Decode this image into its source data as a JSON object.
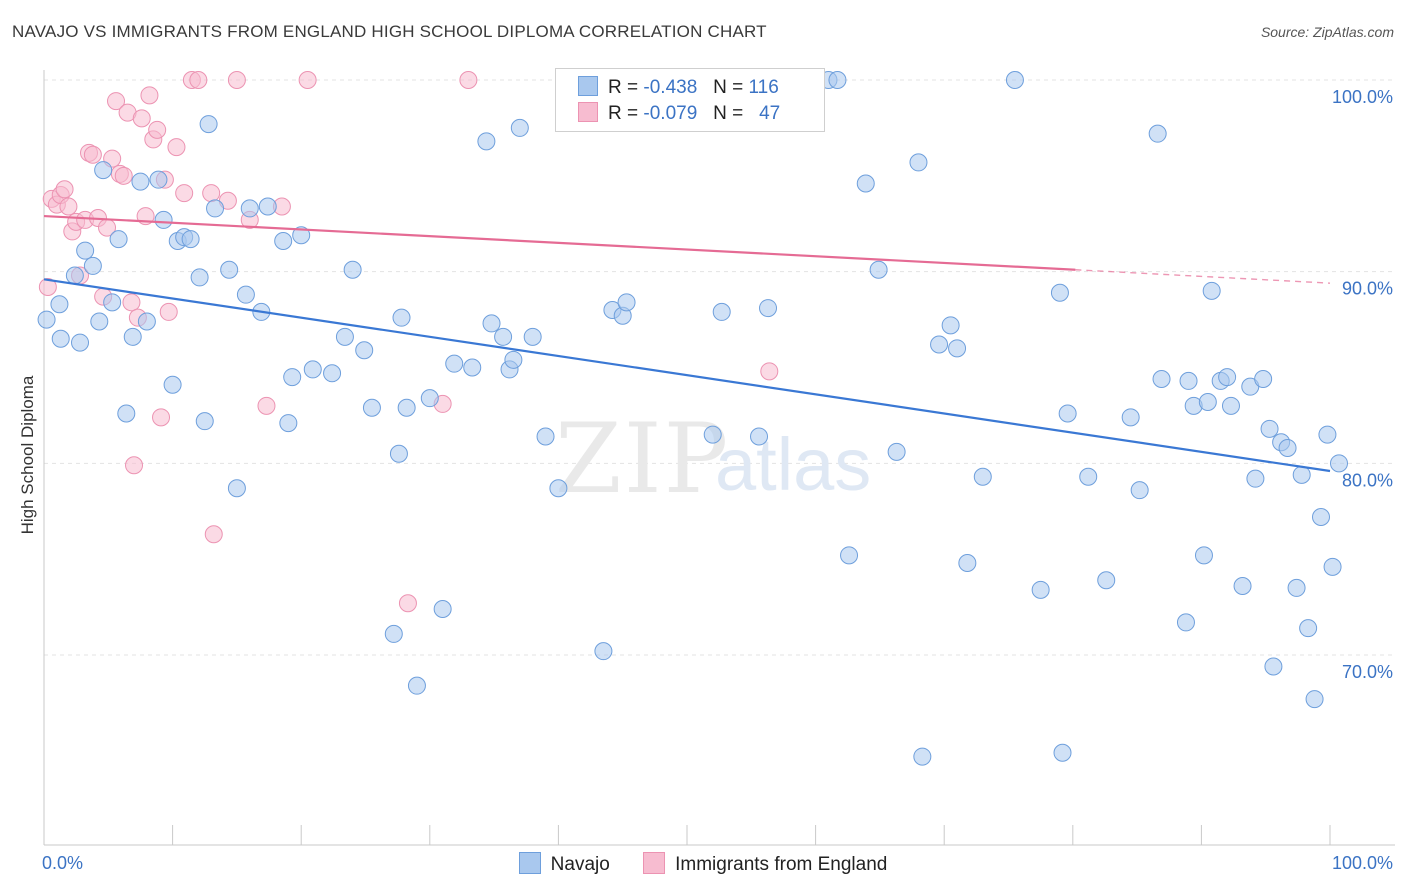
{
  "header": {
    "title": "NAVAJO VS IMMIGRANTS FROM ENGLAND HIGH SCHOOL DIPLOMA CORRELATION CHART",
    "source": "Source: ZipAtlas.com"
  },
  "legend": {
    "rows": [
      {
        "r_label": "R =",
        "r_value": "-0.438",
        "n_label": "N =",
        "n_value": "116"
      },
      {
        "r_label": "R =",
        "r_value": "-0.079",
        "n_label": "N =",
        "n_value": "47"
      }
    ]
  },
  "watermark": {
    "zip": "ZIP",
    "atlas": "atlas"
  },
  "colors": {
    "navajo_fill": "#a9c8ee",
    "navajo_stroke": "#6e9fdc",
    "navajo_line": "#3a78d4",
    "england_fill": "#f7bcd0",
    "england_stroke": "#ec93b2",
    "england_line": "#e56b94",
    "axis_text": "#3b73c4",
    "grid": "#e3e3e3"
  },
  "chart_data": {
    "type": "scatter",
    "title": "NAVAJO VS IMMIGRANTS FROM ENGLAND HIGH SCHOOL DIPLOMA CORRELATION CHART",
    "xlabel": "",
    "ylabel": "High School Diploma",
    "xlim": [
      0,
      100
    ],
    "ylim": [
      60.5,
      101.5
    ],
    "x_tick_labels": [
      "0.0%",
      "100.0%"
    ],
    "y_ticks": [
      100,
      90,
      80,
      70
    ],
    "y_tick_labels": [
      "100.0%",
      "90.0%",
      "80.0%",
      "70.0%"
    ],
    "grid": true,
    "legend_position": "top-center",
    "series": [
      {
        "name": "Navajo",
        "trend": {
          "x": [
            0,
            100
          ],
          "y": [
            89.6,
            79.6
          ]
        },
        "points": [
          [
            0.2,
            87.5
          ],
          [
            1.2,
            88.3
          ],
          [
            1.3,
            86.5
          ],
          [
            2.4,
            89.8
          ],
          [
            2.8,
            86.3
          ],
          [
            3.2,
            91.1
          ],
          [
            3.8,
            90.3
          ],
          [
            4.3,
            87.4
          ],
          [
            4.6,
            95.3
          ],
          [
            5.3,
            88.4
          ],
          [
            5.8,
            91.7
          ],
          [
            6.4,
            82.6
          ],
          [
            6.9,
            86.6
          ],
          [
            7.5,
            94.7
          ],
          [
            8.0,
            87.4
          ],
          [
            8.9,
            94.8
          ],
          [
            9.3,
            92.7
          ],
          [
            10.0,
            84.1
          ],
          [
            10.4,
            91.6
          ],
          [
            10.9,
            91.8
          ],
          [
            11.4,
            91.7
          ],
          [
            12.1,
            89.7
          ],
          [
            12.5,
            82.2
          ],
          [
            12.8,
            97.7
          ],
          [
            13.3,
            93.3
          ],
          [
            14.4,
            90.1
          ],
          [
            15.0,
            78.7
          ],
          [
            15.7,
            88.8
          ],
          [
            16.0,
            93.3
          ],
          [
            16.9,
            87.9
          ],
          [
            17.4,
            93.4
          ],
          [
            18.6,
            91.6
          ],
          [
            19.0,
            82.1
          ],
          [
            19.3,
            84.5
          ],
          [
            20.0,
            91.9
          ],
          [
            20.9,
            84.9
          ],
          [
            22.4,
            84.7
          ],
          [
            23.4,
            86.6
          ],
          [
            24.0,
            90.1
          ],
          [
            24.9,
            85.9
          ],
          [
            25.5,
            82.9
          ],
          [
            27.2,
            71.1
          ],
          [
            27.6,
            80.5
          ],
          [
            27.8,
            87.6
          ],
          [
            28.2,
            82.9
          ],
          [
            29.0,
            68.4
          ],
          [
            30.0,
            83.4
          ],
          [
            31.0,
            72.4
          ],
          [
            31.9,
            85.2
          ],
          [
            33.3,
            85.0
          ],
          [
            34.4,
            96.8
          ],
          [
            34.8,
            87.3
          ],
          [
            35.7,
            86.6
          ],
          [
            36.2,
            84.9
          ],
          [
            36.5,
            85.4
          ],
          [
            37.0,
            97.5
          ],
          [
            38.0,
            86.6
          ],
          [
            39.0,
            81.4
          ],
          [
            40.0,
            78.7
          ],
          [
            43.5,
            70.2
          ],
          [
            44.2,
            88.0
          ],
          [
            45.0,
            87.7
          ],
          [
            45.3,
            88.4
          ],
          [
            52.0,
            81.5
          ],
          [
            52.7,
            87.9
          ],
          [
            55.6,
            81.4
          ],
          [
            56.3,
            88.1
          ],
          [
            61.0,
            100.0
          ],
          [
            61.7,
            100.0
          ],
          [
            62.6,
            75.2
          ],
          [
            63.9,
            94.6
          ],
          [
            64.9,
            90.1
          ],
          [
            66.3,
            80.6
          ],
          [
            68.0,
            95.7
          ],
          [
            68.3,
            64.7
          ],
          [
            69.6,
            86.2
          ],
          [
            70.5,
            87.2
          ],
          [
            71.0,
            86.0
          ],
          [
            71.8,
            74.8
          ],
          [
            73.0,
            79.3
          ],
          [
            75.5,
            100.0
          ],
          [
            77.5,
            73.4
          ],
          [
            79.0,
            88.9
          ],
          [
            79.2,
            64.9
          ],
          [
            79.6,
            82.6
          ],
          [
            81.2,
            79.3
          ],
          [
            82.6,
            73.9
          ],
          [
            84.5,
            82.4
          ],
          [
            85.2,
            78.6
          ],
          [
            86.6,
            97.2
          ],
          [
            86.9,
            84.4
          ],
          [
            88.8,
            71.7
          ],
          [
            89.0,
            84.3
          ],
          [
            89.4,
            83.0
          ],
          [
            90.2,
            75.2
          ],
          [
            90.5,
            83.2
          ],
          [
            90.8,
            89.0
          ],
          [
            91.5,
            84.3
          ],
          [
            92.0,
            84.5
          ],
          [
            92.3,
            83.0
          ],
          [
            93.2,
            73.6
          ],
          [
            93.8,
            84.0
          ],
          [
            94.2,
            79.2
          ],
          [
            94.8,
            84.4
          ],
          [
            95.3,
            81.8
          ],
          [
            95.6,
            69.4
          ],
          [
            96.2,
            81.1
          ],
          [
            96.7,
            80.8
          ],
          [
            97.4,
            73.5
          ],
          [
            97.8,
            79.4
          ],
          [
            98.3,
            71.4
          ],
          [
            98.8,
            67.7
          ],
          [
            99.3,
            77.2
          ],
          [
            99.8,
            81.5
          ],
          [
            100.2,
            74.6
          ],
          [
            100.7,
            80.0
          ]
        ]
      },
      {
        "name": "Immigrants from England",
        "trend": {
          "x": [
            0,
            80.2
          ],
          "y": [
            92.9,
            90.1
          ]
        },
        "trend_extension": {
          "x": [
            80.2,
            100
          ],
          "y": [
            90.1,
            89.4
          ]
        },
        "points": [
          [
            0.3,
            89.2
          ],
          [
            0.6,
            93.8
          ],
          [
            1.0,
            93.5
          ],
          [
            1.3,
            94.0
          ],
          [
            1.6,
            94.3
          ],
          [
            1.9,
            93.4
          ],
          [
            2.2,
            92.1
          ],
          [
            2.5,
            92.6
          ],
          [
            2.8,
            89.8
          ],
          [
            3.2,
            92.7
          ],
          [
            3.5,
            96.2
          ],
          [
            3.8,
            96.1
          ],
          [
            4.2,
            92.8
          ],
          [
            4.6,
            88.7
          ],
          [
            4.9,
            92.3
          ],
          [
            5.3,
            95.9
          ],
          [
            5.6,
            98.9
          ],
          [
            5.9,
            95.1
          ],
          [
            6.2,
            95.0
          ],
          [
            6.5,
            98.3
          ],
          [
            6.8,
            88.4
          ],
          [
            7.0,
            79.9
          ],
          [
            7.3,
            87.6
          ],
          [
            7.6,
            98.0
          ],
          [
            7.9,
            92.9
          ],
          [
            8.2,
            99.2
          ],
          [
            8.5,
            96.9
          ],
          [
            8.8,
            97.4
          ],
          [
            9.1,
            82.4
          ],
          [
            9.4,
            94.8
          ],
          [
            9.7,
            87.9
          ],
          [
            10.3,
            96.5
          ],
          [
            10.9,
            94.1
          ],
          [
            11.5,
            100.0
          ],
          [
            12.0,
            100.0
          ],
          [
            13.0,
            94.1
          ],
          [
            13.2,
            76.3
          ],
          [
            14.3,
            93.7
          ],
          [
            15.0,
            100.0
          ],
          [
            16.0,
            92.7
          ],
          [
            17.3,
            83.0
          ],
          [
            18.5,
            93.4
          ],
          [
            20.5,
            100.0
          ],
          [
            28.3,
            72.7
          ],
          [
            31.0,
            83.1
          ],
          [
            33.0,
            100.0
          ],
          [
            56.4,
            84.8
          ]
        ]
      }
    ]
  }
}
